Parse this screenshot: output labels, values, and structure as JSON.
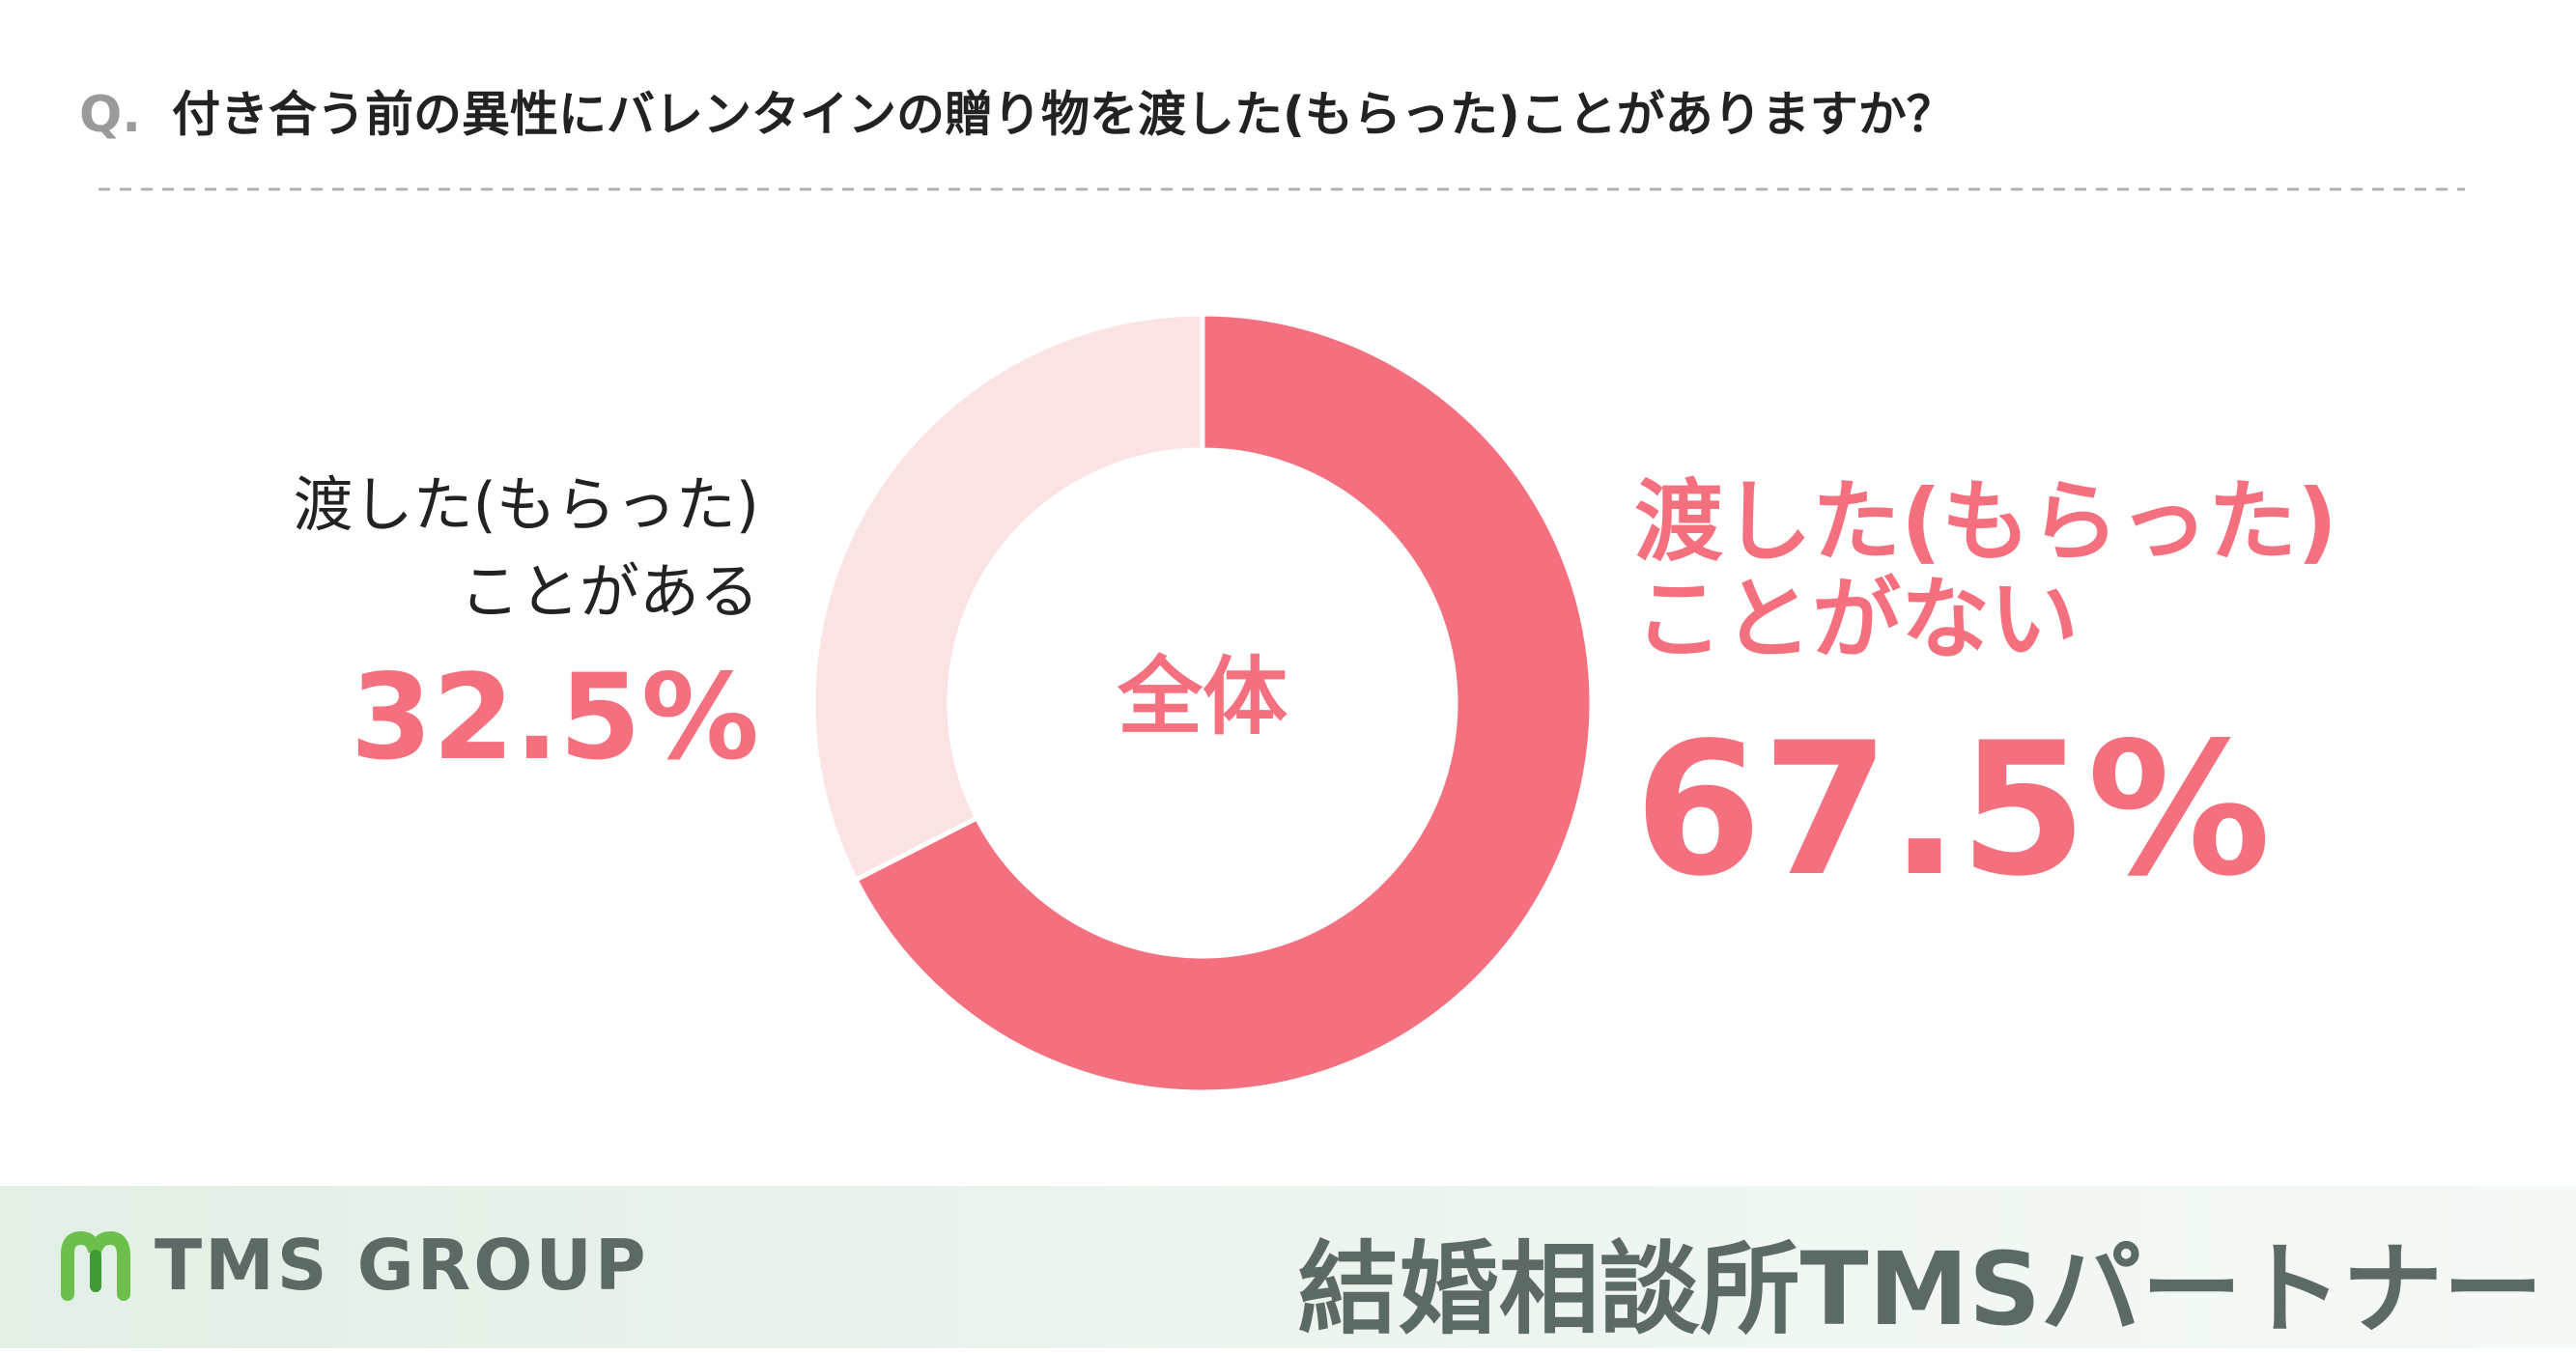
{
  "chart_data": {
    "type": "donut",
    "question_label": "Q.",
    "title": "付き合う前の異性にバレンタインの贈り物を渡した(もらった)ことがありますか？",
    "center_label": "全体",
    "categories": [
      "渡した(もらった)\nことがない",
      "渡した(もらった)\nことがある"
    ],
    "values": [
      67.5,
      32.5
    ],
    "value_labels": [
      "67.5%",
      "32.5%"
    ],
    "colors": [
      "#f5707e",
      "#fce3e3"
    ],
    "footer_left": "TMS GROUP",
    "footer_right": "結婚相談所TMSパートナー"
  }
}
